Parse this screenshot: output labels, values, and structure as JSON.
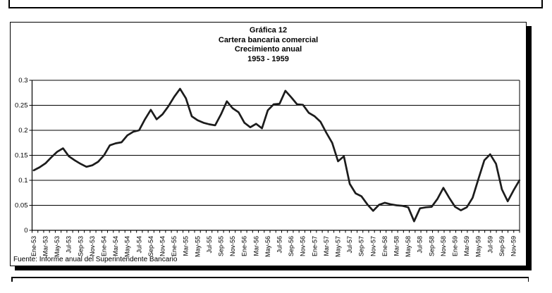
{
  "chart": {
    "title_lines": [
      "Gráfica 12",
      "Cartera bancaria comercial",
      "Crecimiento anual",
      "1953 - 1959"
    ],
    "source_note": "Fuente: Informe anual del Superintendente Bancario",
    "line_color": "#1c1c1c",
    "axis_color": "#000000",
    "background": "#ffffff"
  },
  "chart_data": {
    "type": "line",
    "title": "Gráfica 12 - Cartera bancaria comercial - Crecimiento anual - 1953 - 1959",
    "xlabel": "",
    "ylabel": "",
    "ylim": [
      0,
      0.3
    ],
    "grid": true,
    "legend": false,
    "y_ticks": [
      0,
      0.05,
      0.1,
      0.15,
      0.2,
      0.25,
      0.3
    ],
    "y_tick_labels": [
      "0",
      "0.05",
      "0.1",
      "0.15",
      "0.2",
      "0.25",
      "0.3"
    ],
    "x": [
      "Ene-53",
      "Feb-53",
      "Mar-53",
      "Abr-53",
      "May-53",
      "Jun-53",
      "Jul-53",
      "Ago-53",
      "Sep-53",
      "Oct-53",
      "Nov-53",
      "Dic-53",
      "Ene-54",
      "Feb-54",
      "Mar-54",
      "Abr-54",
      "May-54",
      "Jun-54",
      "Jul-54",
      "Ago-54",
      "Sep-54",
      "Oct-54",
      "Nov-54",
      "Dic-54",
      "Ene-55",
      "Feb-55",
      "Mar-55",
      "Abr-55",
      "May-55",
      "Jun-55",
      "Jul-55",
      "Ago-55",
      "Sep-55",
      "Oct-55",
      "Nov-55",
      "Dic-55",
      "Ene-56",
      "Feb-56",
      "Mar-56",
      "Abr-56",
      "May-56",
      "Jun-56",
      "Jul-56",
      "Ago-56",
      "Sep-56",
      "Oct-56",
      "Nov-56",
      "Dic-56",
      "Ene-57",
      "Feb-57",
      "Mar-57",
      "Abr-57",
      "May-57",
      "Jun-57",
      "Jul-57",
      "Ago-57",
      "Sep-57",
      "Oct-57",
      "Nov-57",
      "Dic-57",
      "Ene-58",
      "Feb-58",
      "Mar-58",
      "Abr-58",
      "May-58",
      "Jun-58",
      "Jul-58",
      "Ago-58",
      "Sep-58",
      "Oct-58",
      "Nov-58",
      "Dic-58",
      "Ene-59",
      "Feb-59",
      "Mar-59",
      "Abr-59",
      "May-59",
      "Jun-59",
      "Jul-59",
      "Ago-59",
      "Sep-59",
      "Oct-59",
      "Nov-59",
      "Dic-59"
    ],
    "x_tick_labels": [
      "Ene-53",
      "Mar-53",
      "May-53",
      "Jul-53",
      "Sep-53",
      "Nov-53",
      "Ene-54",
      "Mar-54",
      "May-54",
      "Jul-54",
      "Sep-54",
      "Nov-54",
      "Ene-55",
      "Mar-55",
      "May-55",
      "Jul-55",
      "Sep-55",
      "Nov-55",
      "Ene-56",
      "Mar-56",
      "May-56",
      "Jul-56",
      "Sep-56",
      "Nov-56",
      "Ene-57",
      "Mar-57",
      "May-57",
      "Jul-57",
      "Sep-57",
      "Nov-57",
      "Ene-58",
      "Mar-58",
      "May-58",
      "Jul-58",
      "Sep-58",
      "Nov-58",
      "Ene-59",
      "Mar-59",
      "May-59",
      "Jul-59",
      "Sep-59",
      "Nov-59"
    ],
    "values": [
      0.12,
      0.126,
      0.134,
      0.146,
      0.157,
      0.164,
      0.148,
      0.14,
      0.133,
      0.127,
      0.13,
      0.137,
      0.15,
      0.17,
      0.174,
      0.176,
      0.19,
      0.197,
      0.2,
      0.222,
      0.241,
      0.222,
      0.232,
      0.248,
      0.267,
      0.283,
      0.264,
      0.228,
      0.22,
      0.215,
      0.212,
      0.21,
      0.232,
      0.258,
      0.244,
      0.236,
      0.215,
      0.206,
      0.213,
      0.204,
      0.24,
      0.252,
      0.253,
      0.279,
      0.266,
      0.252,
      0.251,
      0.235,
      0.228,
      0.217,
      0.195,
      0.175,
      0.138,
      0.148,
      0.093,
      0.074,
      0.068,
      0.052,
      0.039,
      0.051,
      0.055,
      0.052,
      0.05,
      0.049,
      0.046,
      0.018,
      0.044,
      0.046,
      0.047,
      0.063,
      0.085,
      0.065,
      0.047,
      0.04,
      0.046,
      0.065,
      0.103,
      0.14,
      0.152,
      0.133,
      0.082,
      0.058,
      0.08,
      0.1
    ]
  }
}
